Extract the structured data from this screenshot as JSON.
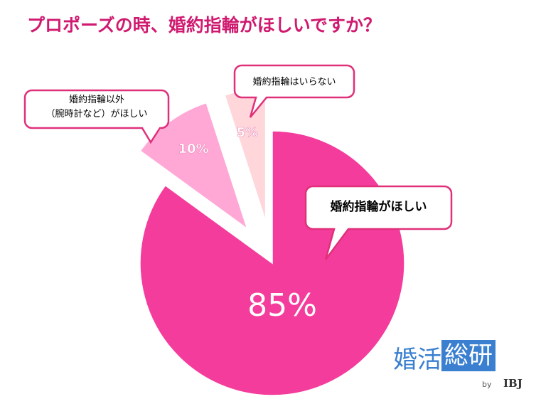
{
  "chart_data": {
    "type": "pie",
    "title": "プロポーズの時、婚約指輪がほしいですか？",
    "categories": [
      "婚約指輪がほしい",
      "婚約指輪以外\n（腕時計など）がほしい",
      "婚約指輪はいらない"
    ],
    "values": [
      85,
      10,
      5
    ],
    "value_labels": [
      "85%",
      "10%",
      "5%"
    ],
    "colors": [
      "#f43c9c",
      "#ffa8d6",
      "#ffd6da"
    ],
    "exploded": [
      false,
      true,
      true
    ]
  },
  "logo": {
    "word1": "婚活",
    "word2": "総研",
    "by": "by",
    "brand": "IBJ"
  }
}
